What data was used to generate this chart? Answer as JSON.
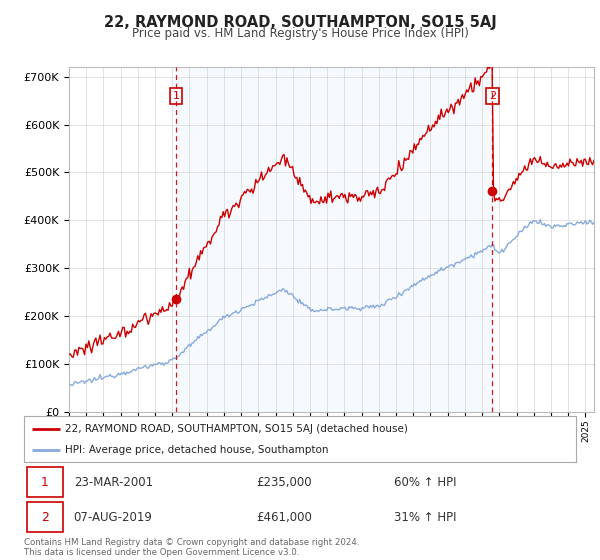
{
  "title": "22, RAYMOND ROAD, SOUTHAMPTON, SO15 5AJ",
  "subtitle": "Price paid vs. HM Land Registry's House Price Index (HPI)",
  "ylim": [
    0,
    720000
  ],
  "xlim_start": 1995.0,
  "xlim_end": 2025.5,
  "sale1_t": 2001.22,
  "sale1_price": 235000,
  "sale2_t": 2019.6,
  "sale2_price": 461000,
  "red_line_color": "#cc0000",
  "blue_line_color": "#88aadd",
  "dashed_line_color": "#cc0000",
  "fill_color": "#ddeeff",
  "legend_entry1": "22, RAYMOND ROAD, SOUTHAMPTON, SO15 5AJ (detached house)",
  "legend_entry2": "HPI: Average price, detached house, Southampton",
  "annotation1_date": "23-MAR-2001",
  "annotation1_price": "£235,000",
  "annotation1_hpi": "60% ↑ HPI",
  "annotation2_date": "07-AUG-2019",
  "annotation2_price": "£461,000",
  "annotation2_hpi": "31% ↑ HPI",
  "footer": "Contains HM Land Registry data © Crown copyright and database right 2024.\nThis data is licensed under the Open Government Licence v3.0.",
  "background_color": "#ffffff",
  "grid_color": "#cccccc"
}
